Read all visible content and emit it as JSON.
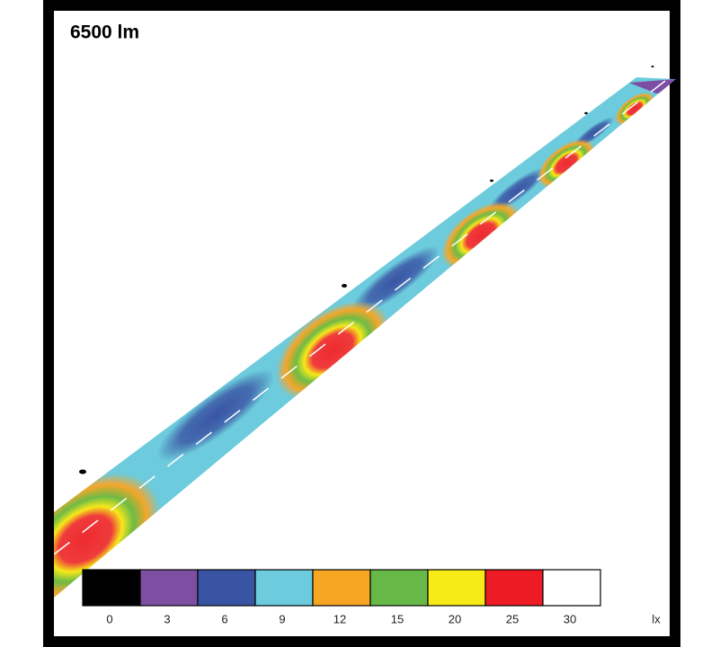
{
  "title": "6500 lm",
  "legend": {
    "items": [
      {
        "label": 0,
        "color": "#000000"
      },
      {
        "label": 3,
        "color": "#7d4fa3"
      },
      {
        "label": 6,
        "color": "#3a54a4"
      },
      {
        "label": 9,
        "color": "#6ccbdc"
      },
      {
        "label": 12,
        "color": "#f6a623"
      },
      {
        "label": 15,
        "color": "#66b947"
      },
      {
        "label": 20,
        "color": "#f6eb16"
      },
      {
        "label": 25,
        "color": "#ed1c24"
      },
      {
        "label": 30,
        "color": "#ffffff"
      }
    ],
    "unit": "lx"
  }
}
